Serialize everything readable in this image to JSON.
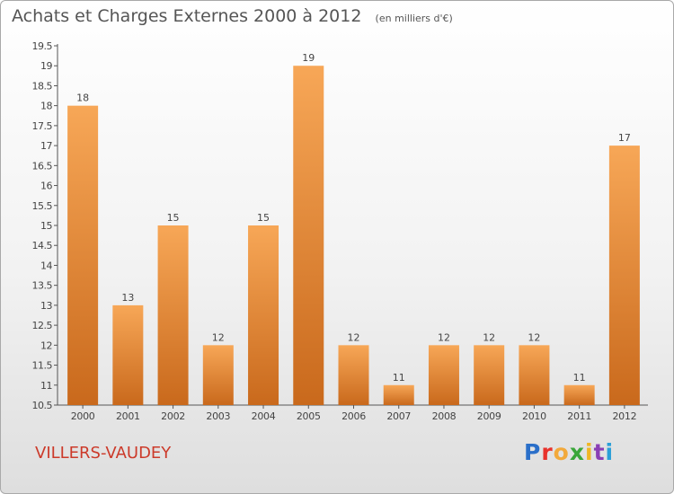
{
  "header": {
    "title": "Achats et Charges Externes 2000 à 2012",
    "subtitle": "(en milliers d'€)"
  },
  "footer": {
    "commune": "VILLERS-VAUDEY",
    "logo_letters": [
      "P",
      "r",
      "o",
      "x",
      "i",
      "t",
      "i"
    ],
    "logo_colors": [
      "#2a6fc9",
      "#e8322b",
      "#f2a93b",
      "#3aa63a",
      "#f0b624",
      "#8a3fb5",
      "#2a9fd8"
    ]
  },
  "chart_data": {
    "type": "bar",
    "categories": [
      "2000",
      "2001",
      "2002",
      "2003",
      "2004",
      "2005",
      "2006",
      "2007",
      "2008",
      "2009",
      "2010",
      "2011",
      "2012"
    ],
    "values": [
      18,
      13,
      15,
      12,
      15,
      19,
      12,
      11,
      12,
      12,
      12,
      11,
      17
    ],
    "data_labels": [
      "18",
      "13",
      "15",
      "12",
      "15",
      "19",
      "12",
      "11",
      "12",
      "12",
      "12",
      "11",
      "17"
    ],
    "ylim": [
      10.5,
      19.5
    ],
    "yticks": [
      "10.5",
      "11",
      "11.5",
      "12",
      "12.5",
      "13",
      "13.5",
      "14",
      "14.5",
      "15",
      "15.5",
      "16",
      "16.5",
      "17",
      "17.5",
      "18",
      "18.5",
      "19",
      "19.5"
    ],
    "grid": false,
    "bar_color_top": "#f7a757",
    "bar_color_bottom": "#c9691c"
  }
}
